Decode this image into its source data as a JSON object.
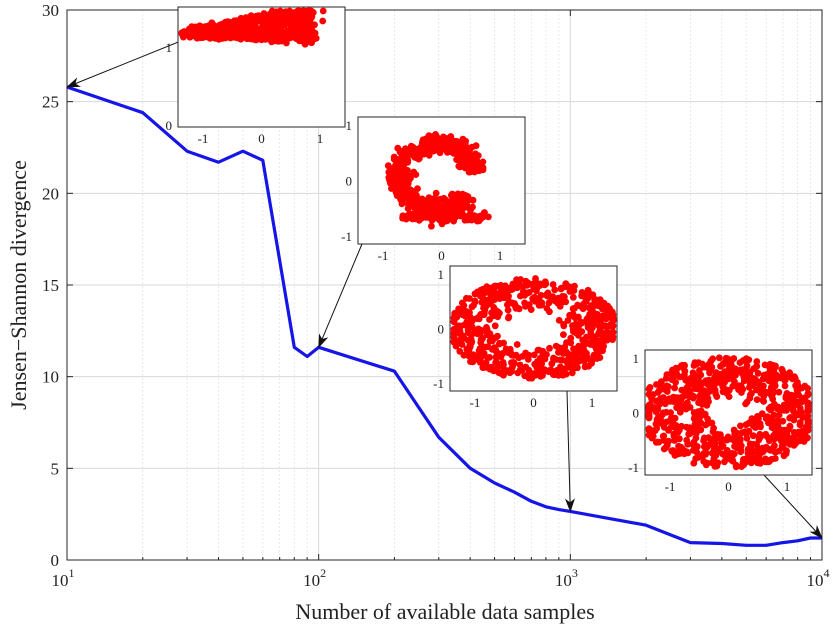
{
  "chart_data": {
    "type": "line",
    "title": "",
    "xlabel": "Number of available data samples",
    "ylabel": "Jensen−Shannon divergence",
    "x_scale": "log",
    "xlim": [
      10,
      10000
    ],
    "ylim": [
      0,
      30
    ],
    "grid": true,
    "x_ticks": [
      {
        "value": 10,
        "base": "10",
        "exp": "1"
      },
      {
        "value": 100,
        "base": "10",
        "exp": "2"
      },
      {
        "value": 1000,
        "base": "10",
        "exp": "3"
      },
      {
        "value": 10000,
        "base": "10",
        "exp": "4"
      }
    ],
    "y_ticks": [
      "0",
      "5",
      "10",
      "15",
      "20",
      "25",
      "30"
    ],
    "series": [
      {
        "color": "#1515e8",
        "x": [
          10,
          20,
          30,
          40,
          50,
          60,
          80,
          90,
          100,
          200,
          300,
          400,
          500,
          600,
          700,
          800,
          900,
          1000,
          2000,
          3000,
          4000,
          5000,
          6000,
          7000,
          8000,
          9000,
          10000
        ],
        "y": [
          25.8,
          24.4,
          22.3,
          21.7,
          22.3,
          21.8,
          11.6,
          11.1,
          11.6,
          10.3,
          6.7,
          5.0,
          4.2,
          3.7,
          3.2,
          2.9,
          2.75,
          2.65,
          1.9,
          0.95,
          0.9,
          0.8,
          0.8,
          0.95,
          1.05,
          1.2,
          1.2
        ]
      }
    ],
    "insets": [
      {
        "name": "inset-10",
        "shape": "blob",
        "points_to": {
          "x": 10,
          "y": 25.8
        },
        "x_ticks": [
          "-1",
          "0",
          "1"
        ],
        "y_ticks": [
          "1",
          "0"
        ]
      },
      {
        "name": "inset-100",
        "shape": "crescent",
        "points_to": {
          "x": 100,
          "y": 11.6
        },
        "x_ticks": [
          "-1",
          "0",
          "1"
        ],
        "y_ticks": [
          "1",
          "0",
          "-1"
        ]
      },
      {
        "name": "inset-1000",
        "shape": "thick-ring",
        "points_to": {
          "x": 1000,
          "y": 2.65
        },
        "x_ticks": [
          "-1",
          "0",
          "1"
        ],
        "y_ticks": [
          "1",
          "0",
          "-1"
        ]
      },
      {
        "name": "inset-10000",
        "shape": "ring",
        "points_to": {
          "x": 10000,
          "y": 1.2
        },
        "x_ticks": [
          "-1",
          "0",
          "1"
        ],
        "y_ticks": [
          "1",
          "0",
          "-1"
        ]
      }
    ],
    "colors": {
      "line": "#1515e8",
      "scatter": "#ff0000",
      "grid": "#d9d9d9"
    }
  }
}
